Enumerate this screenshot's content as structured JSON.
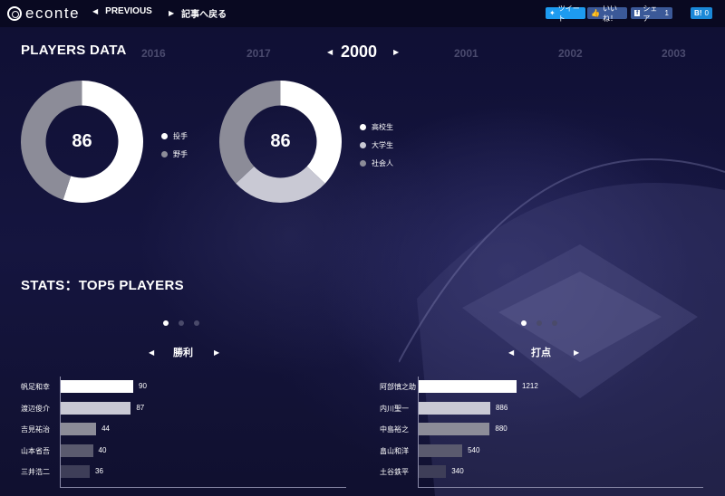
{
  "header": {
    "logo": "econte",
    "nav": [
      {
        "label": "PREVIOUS"
      },
      {
        "label": "記事へ戻る"
      }
    ],
    "social": {
      "tweet": "ツイート",
      "like": "いいね！",
      "share": "シェア",
      "share_count": "1",
      "hatena": "B!",
      "hatena_count": "0"
    }
  },
  "players": {
    "title": "PLAYERS DATA",
    "years": [
      "2016",
      "2017",
      "2001",
      "2002",
      "2003"
    ],
    "current_year": "2000"
  },
  "colors": {
    "white": "#ffffff",
    "light_gray": "#c9c9d4",
    "mid_gray": "#8c8c98",
    "dark_gray": "#5a5a6e",
    "darker_gray": "#3e3e58"
  },
  "chart_data": [
    {
      "type": "pie",
      "total_label": "86",
      "slices": [
        {
          "name": "投手",
          "value": 0.55,
          "color": "#ffffff"
        },
        {
          "name": "野手",
          "value": 0.45,
          "color": "#8c8c98"
        }
      ]
    },
    {
      "type": "pie",
      "total_label": "86",
      "slices": [
        {
          "name": "高校生",
          "value": 0.37,
          "color": "#ffffff"
        },
        {
          "name": "大学生",
          "value": 0.26,
          "color": "#c9c9d4"
        },
        {
          "name": "社会人",
          "value": 0.37,
          "color": "#8c8c98"
        }
      ]
    },
    {
      "type": "bar",
      "title": "勝利",
      "categories": [
        "帆足和幸",
        "渡辺俊介",
        "吉見祐治",
        "山本省吾",
        "三井浩二"
      ],
      "values": [
        90,
        87,
        44,
        40,
        36
      ],
      "xlim": [
        0,
        90
      ]
    },
    {
      "type": "bar",
      "title": "打点",
      "categories": [
        "阿部慎之助",
        "内川聖一",
        "中島裕之",
        "畠山和洋",
        "土谷鉄平"
      ],
      "values": [
        1212,
        886,
        880,
        540,
        340
      ],
      "xlim": [
        0,
        1212
      ]
    }
  ],
  "stats": {
    "title": "STATS：TOP5 PLAYERS"
  }
}
